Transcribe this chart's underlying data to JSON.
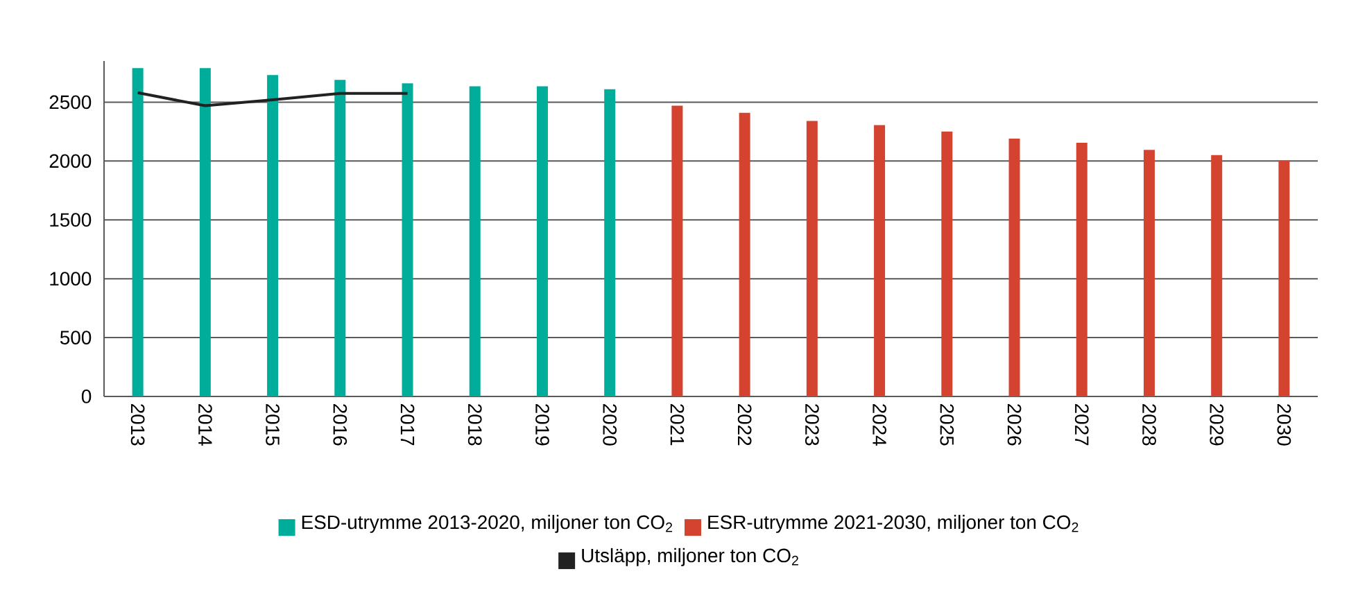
{
  "chart_data": {
    "type": "bar",
    "categories": [
      "2013",
      "2014",
      "2015",
      "2016",
      "2017",
      "2018",
      "2019",
      "2020",
      "2021",
      "2022",
      "2023",
      "2024",
      "2025",
      "2026",
      "2027",
      "2028",
      "2029",
      "2030"
    ],
    "series": [
      {
        "name": "ESD-utrymme 2013-2020, miljoner ton CO$_{2}$",
        "color": "#00ac9a",
        "values": [
          2790,
          2790,
          2730,
          2690,
          2660,
          2635,
          2635,
          2610,
          null,
          null,
          null,
          null,
          null,
          null,
          null,
          null,
          null,
          null
        ]
      },
      {
        "name": "ESR-utrymme 2021-2030, miljoner ton CO$_{2}$",
        "color": "#d44330",
        "values": [
          null,
          null,
          null,
          null,
          null,
          null,
          null,
          null,
          2470,
          2410,
          2340,
          2305,
          2250,
          2190,
          2155,
          2095,
          2050,
          2005
        ]
      },
      {
        "name": "Utsläpp, miljoner ton CO$_{2}$",
        "type": "line",
        "color": "#222222",
        "values": [
          2580,
          2470,
          2520,
          2575,
          2575,
          null,
          null,
          null,
          null,
          null,
          null,
          null,
          null,
          null,
          null,
          null,
          null,
          null
        ]
      }
    ],
    "ylim": [
      0,
      2850
    ],
    "yticks": [
      0,
      500,
      1000,
      1500,
      2000,
      2500
    ],
    "grid": "y",
    "legend": "bottom"
  }
}
